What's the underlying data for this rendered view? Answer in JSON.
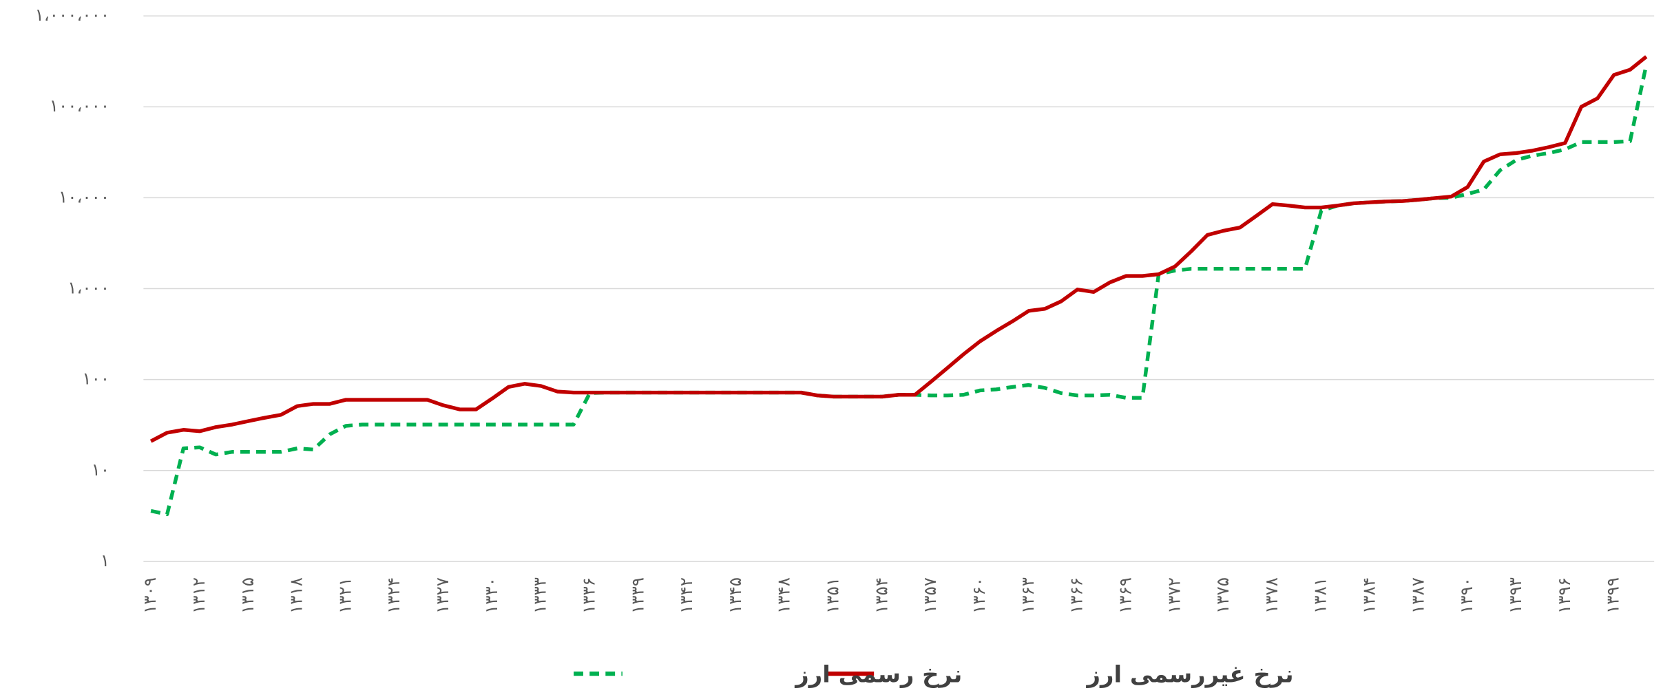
{
  "chart_data": {
    "type": "line",
    "log_scale": true,
    "grid": true,
    "legend": "bottom",
    "categories": [
      "۱۳۰۹",
      null,
      null,
      "۱۳۱۲",
      null,
      null,
      "۱۳۱۵",
      null,
      null,
      "۱۳۱۸",
      null,
      null,
      "۱۳۲۱",
      null,
      null,
      "۱۳۲۴",
      null,
      null,
      "۱۳۲۷",
      null,
      null,
      "۱۳۳۰",
      null,
      null,
      "۱۳۳۳",
      null,
      null,
      "۱۳۳۶",
      null,
      null,
      "۱۳۳۹",
      null,
      null,
      "۱۳۴۲",
      null,
      null,
      "۱۳۴۵",
      null,
      null,
      "۱۳۴۸",
      null,
      null,
      "۱۳۵۱",
      null,
      null,
      "۱۳۵۴",
      null,
      null,
      "۱۳۵۷",
      null,
      null,
      "۱۳۶۰",
      null,
      null,
      "۱۳۶۳",
      null,
      null,
      "۱۳۶۶",
      null,
      null,
      "۱۳۶۹",
      null,
      null,
      "۱۳۷۲",
      null,
      null,
      "۱۳۷۵",
      null,
      null,
      "۱۳۷۸",
      null,
      null,
      "۱۳۸۱",
      null,
      null,
      "۱۳۸۴",
      null,
      null,
      "۱۳۸۷",
      null,
      null,
      "۱۳۹۰",
      null,
      null,
      "۱۳۹۳",
      null,
      null,
      "۱۳۹۶",
      null,
      null,
      "۱۳۹۹",
      null,
      null
    ],
    "series": [
      {
        "name": "نرخ غیررسمی ارز",
        "color": "#c00000",
        "dash": false,
        "values": [
          21,
          26,
          28,
          27,
          30,
          32,
          35,
          38,
          41,
          51,
          54,
          54,
          60,
          60,
          60,
          60,
          60,
          60,
          52,
          47,
          47,
          62,
          83,
          90,
          85,
          74,
          72,
          72,
          72,
          72,
          72,
          72,
          72,
          72,
          72,
          72,
          72,
          72,
          72,
          72,
          72,
          67,
          65,
          65,
          65,
          65,
          68,
          68,
          95,
          134,
          190,
          263,
          342,
          436,
          570,
          600,
          724,
          980,
          920,
          1170,
          1380,
          1380,
          1440,
          1750,
          2570,
          3900,
          4340,
          4700,
          6300,
          8500,
          8200,
          7800,
          7800,
          8200,
          8700,
          8900,
          9100,
          9200,
          9500,
          9900,
          10300,
          13100,
          25000,
          30000,
          31000,
          33000,
          36000,
          40000,
          100000,
          124000,
          224000,
          256000,
          356000
        ]
      },
      {
        "name": "نرخ رسمی ارز",
        "color": "#00b050",
        "dash": true,
        "values": [
          3.6,
          3.3,
          17.5,
          18,
          15,
          16,
          16,
          16,
          16,
          17.5,
          17,
          25,
          31,
          32,
          32,
          32,
          32,
          32,
          32,
          32,
          32,
          32,
          32,
          32,
          32,
          32,
          32,
          71,
          72,
          72,
          72,
          72,
          72,
          72,
          72,
          72,
          72,
          72,
          72,
          72,
          72,
          67,
          65,
          65,
          65,
          65,
          68,
          68,
          67,
          67,
          68,
          76,
          78,
          83,
          87,
          81,
          71,
          67,
          67,
          68,
          63,
          63,
          1440,
          1580,
          1650,
          1650,
          1650,
          1650,
          1650,
          1650,
          1650,
          1650,
          7200,
          8200,
          8700,
          8900,
          9100,
          9200,
          9500,
          9900,
          10000,
          11000,
          12300,
          20000,
          26000,
          29000,
          31000,
          34000,
          41000,
          41000,
          41000,
          42000,
          290000
        ]
      }
    ],
    "ylim": [
      1,
      1000000
    ],
    "yticks": [
      {
        "value": 1,
        "label": "۱"
      },
      {
        "value": 10,
        "label": "۱۰"
      },
      {
        "value": 100,
        "label": "۱۰۰"
      },
      {
        "value": 1000,
        "label": "۱،۰۰۰"
      },
      {
        "value": 10000,
        "label": "۱۰،۰۰۰"
      },
      {
        "value": 100000,
        "label": "۱۰۰،۰۰۰"
      },
      {
        "value": 1000000,
        "label": "۱،۰۰۰،۰۰۰"
      }
    ]
  }
}
